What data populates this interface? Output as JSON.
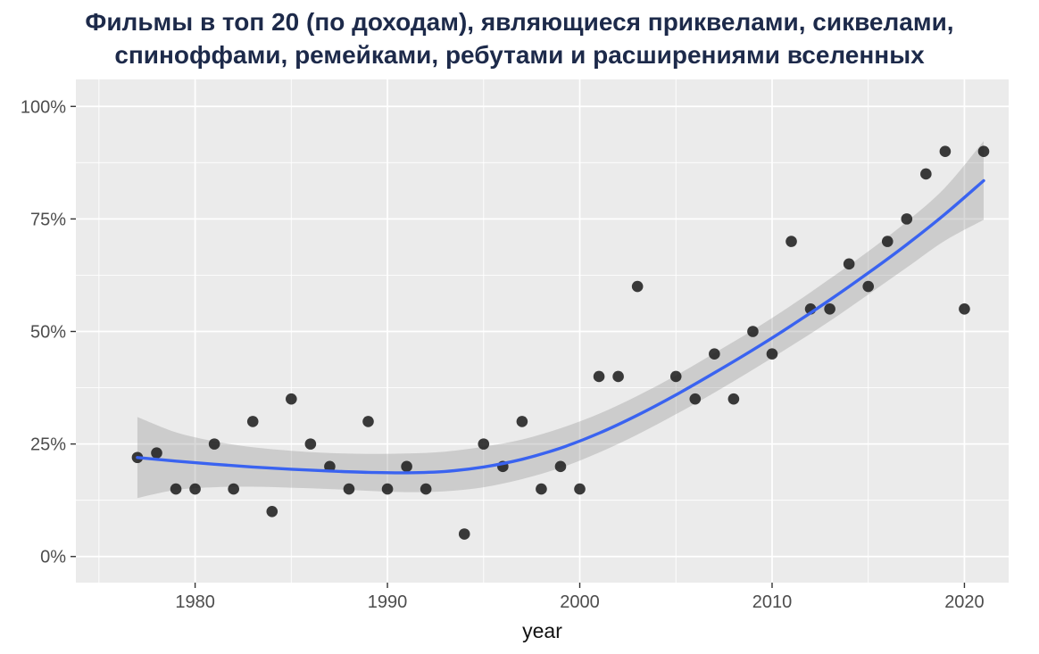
{
  "header": {
    "title_full": "Фильмы в топ 20 (по доходам), являющиеся приквелами, сиквелами, спиноффами, ремейками, ребутами и расширениями вселенных",
    "title_lines": [
      "Фильмы в топ 20 (по доходам), являющиеся приквелами, сиквелами,",
      "спиноффами, ремейками, ребутами и расширениями вселенных"
    ],
    "title_color": "#1d2a4a"
  },
  "chart_data": {
    "type": "scatter",
    "title": "Фильмы в топ 20 (по доходам), являющиеся приквелами, сиквелами, спиноффами, ремейками, ребутами и расширениями вселенных",
    "xlabel": "year",
    "ylabel": "",
    "xlim": [
      1973.8,
      2022.3
    ],
    "ylim": [
      -5.8,
      106
    ],
    "x_ticks": {
      "values": [
        1980,
        1990,
        2000,
        2010,
        2020
      ],
      "labels": [
        "1980",
        "1990",
        "2000",
        "2010",
        "2020"
      ]
    },
    "y_ticks": {
      "values": [
        0,
        25,
        50,
        75,
        100
      ],
      "labels": [
        "0%",
        "25%",
        "50%",
        "75%",
        "100%"
      ]
    },
    "x_minor": [
      1975,
      1985,
      1995,
      2005,
      2015
    ],
    "y_minor": [
      12.5,
      37.5,
      62.5,
      87.5
    ],
    "grid": true,
    "legend": "none",
    "points": {
      "x": [
        1977,
        1978,
        1979,
        1980,
        1981,
        1982,
        1983,
        1984,
        1985,
        1986,
        1987,
        1988,
        1989,
        1990,
        1991,
        1992,
        1994,
        1995,
        1996,
        1997,
        1998,
        1999,
        2000,
        2001,
        2002,
        2003,
        2005,
        2006,
        2007,
        2008,
        2009,
        2010,
        2011,
        2012,
        2013,
        2014,
        2015,
        2016,
        2017,
        2018,
        2019,
        2020,
        2021
      ],
      "y": [
        22,
        23,
        15,
        15,
        25,
        15,
        30,
        10,
        35,
        25,
        20,
        15,
        30,
        15,
        20,
        15,
        5,
        25,
        20,
        30,
        15,
        20,
        15,
        40,
        40,
        60,
        40,
        35,
        45,
        35,
        50,
        45,
        70,
        55,
        55,
        65,
        60,
        70,
        75,
        85,
        90,
        55,
        90
      ]
    },
    "smooth": {
      "x": [
        1977,
        1979,
        1981,
        1983,
        1985,
        1987,
        1989,
        1991,
        1993,
        1995,
        1997,
        1999,
        2001,
        2003,
        2005,
        2007,
        2009,
        2011,
        2013,
        2015,
        2017,
        2019,
        2021
      ],
      "y": [
        22.0,
        21.2,
        20.5,
        19.9,
        19.4,
        19.0,
        18.7,
        18.6,
        18.9,
        19.9,
        21.6,
        24.1,
        27.4,
        31.4,
        35.9,
        40.8,
        45.9,
        51.3,
        57.0,
        63.0,
        69.3,
        76.1,
        83.5
      ],
      "upper": [
        31.0,
        27.6,
        25.6,
        24.3,
        23.5,
        23.0,
        22.8,
        22.9,
        23.3,
        24.4,
        26.0,
        28.5,
        31.7,
        35.7,
        40.2,
        45.2,
        50.3,
        55.8,
        61.7,
        67.8,
        74.4,
        82.0,
        92.3
      ],
      "lower": [
        13.0,
        14.8,
        15.4,
        15.5,
        15.3,
        15.0,
        14.6,
        14.3,
        14.5,
        15.4,
        17.2,
        19.7,
        23.1,
        27.1,
        31.6,
        36.4,
        41.5,
        46.8,
        52.3,
        58.2,
        64.2,
        70.2,
        74.8
      ]
    },
    "style": {
      "panel_bg": "#EBEBEB",
      "grid_color": "#FFFFFF",
      "point_color": "#1A1A1A",
      "point_opacity": 0.85,
      "line_color": "#3A63F0",
      "band_color": "#8C8C8C",
      "band_opacity": 0.32,
      "tick_label_color": "#4D4D4D",
      "axis_title_color": "#111111",
      "tick_mark_color": "#333333"
    }
  }
}
